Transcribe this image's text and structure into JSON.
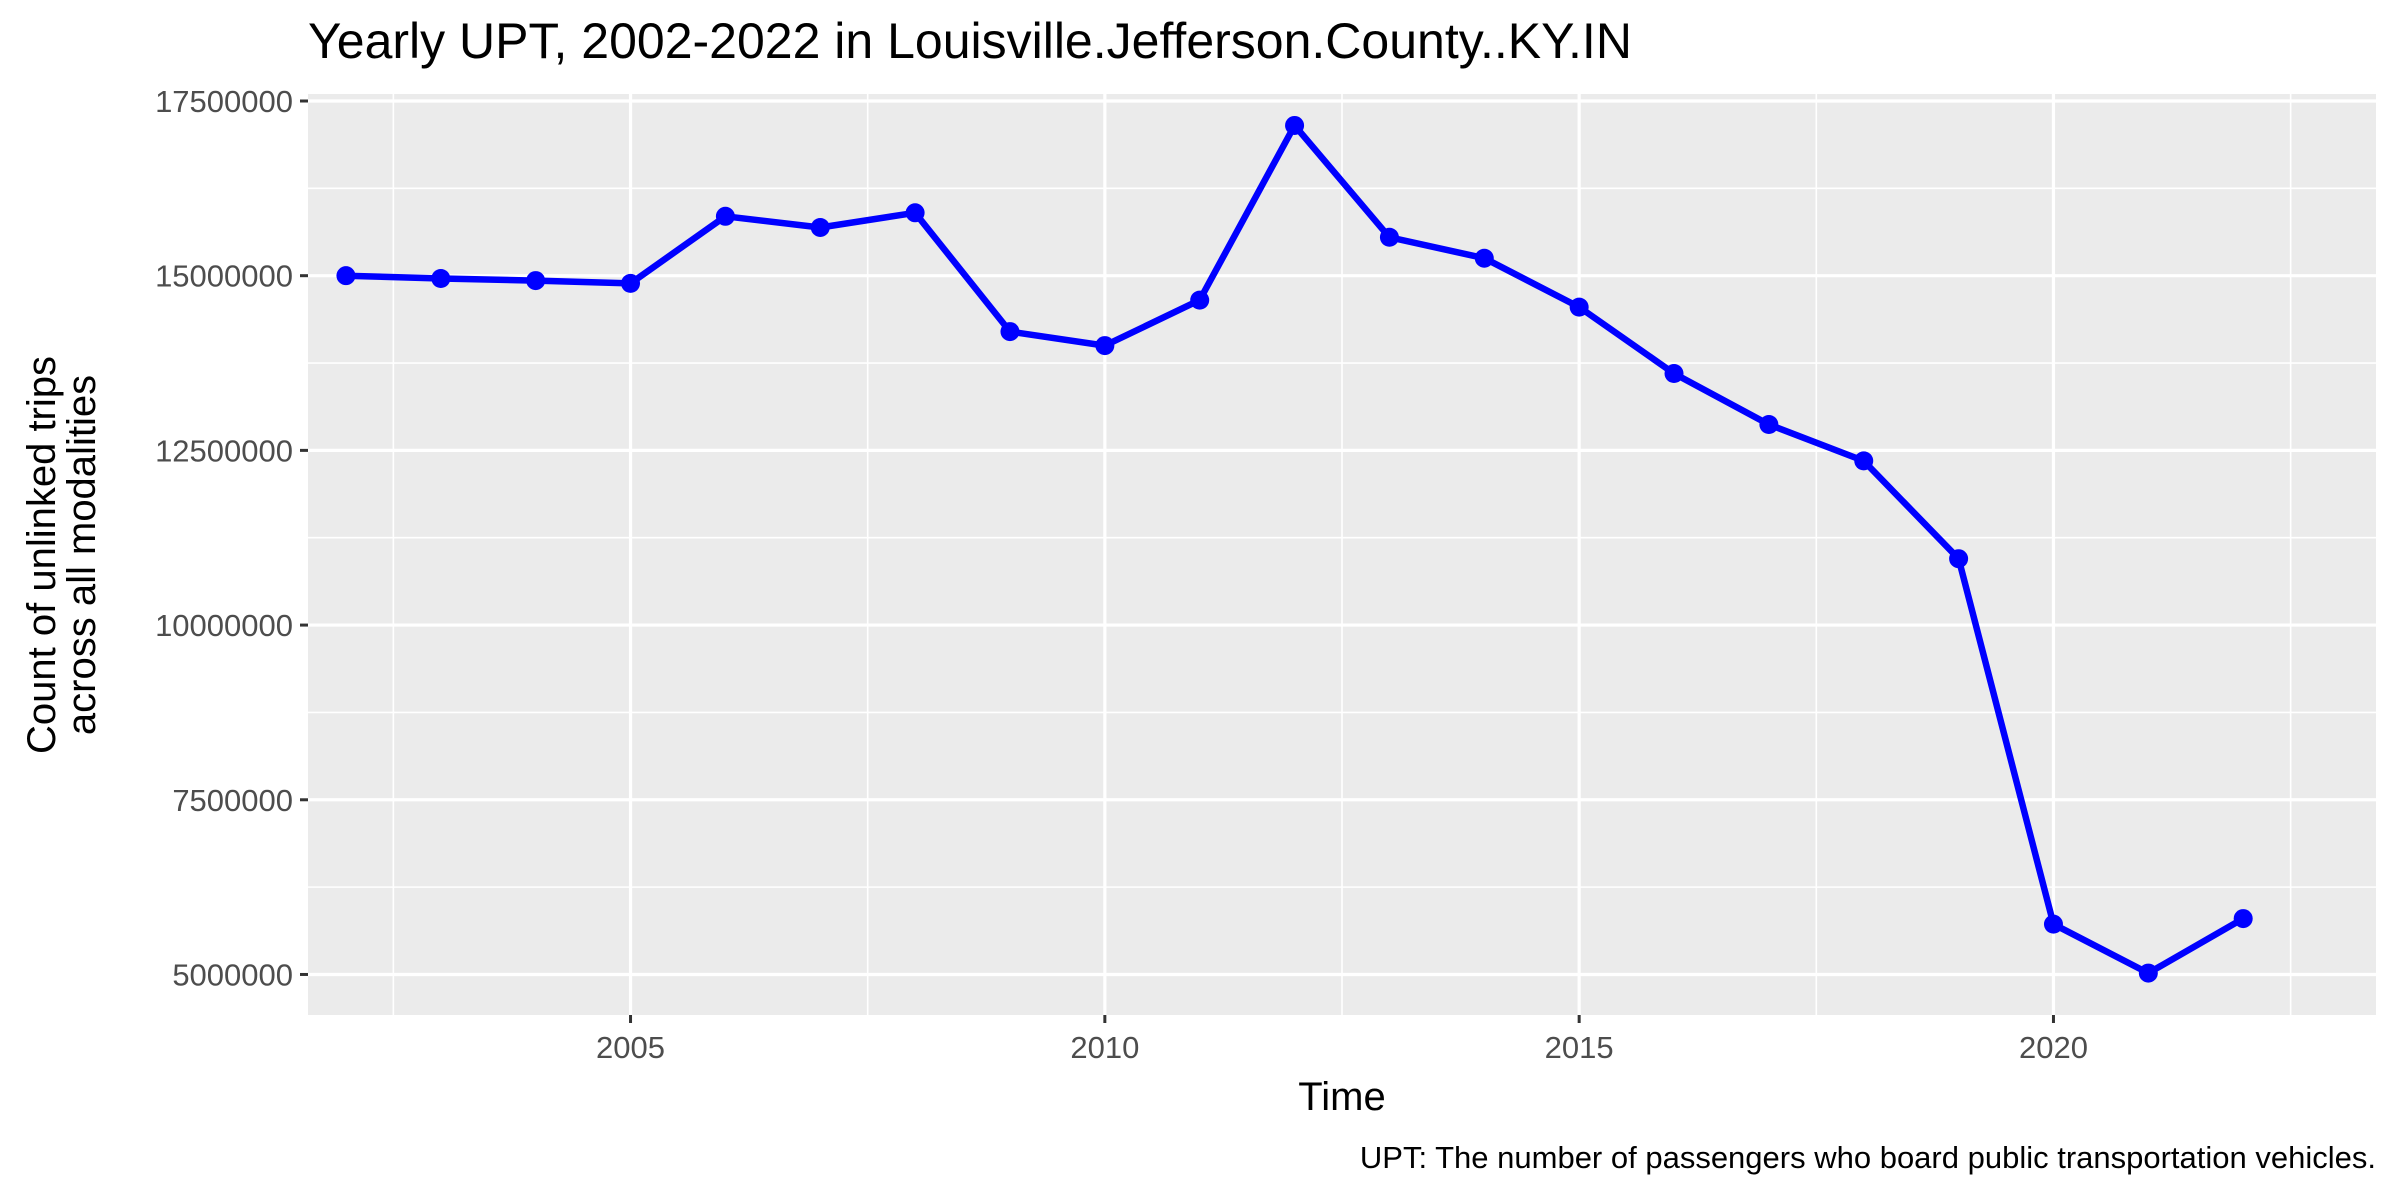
{
  "chart_data": {
    "type": "line",
    "title": "Yearly UPT, 2002-2022 in Louisville.Jefferson.County..KY.IN",
    "xlabel": "Time",
    "ylabel_lines": [
      "Count of unlinked trips",
      "across all modalities"
    ],
    "caption": "UPT: The number of passengers who board public transportation vehicles.",
    "xlim": [
      2001.6,
      2023.4
    ],
    "ylim": [
      4420000,
      17600000
    ],
    "x_ticks": [
      2005,
      2010,
      2015,
      2020
    ],
    "x_tick_labels": [
      "2005",
      "2010",
      "2015",
      "2020"
    ],
    "y_ticks": [
      5000000,
      7500000,
      10000000,
      12500000,
      15000000,
      17500000
    ],
    "y_tick_labels": [
      "5000000",
      "7500000",
      "10000000",
      "12500000",
      "15000000",
      "17500000"
    ],
    "grid": true,
    "legend": "none",
    "panel_color": "#ebebeb",
    "grid_color": "#ffffff",
    "series": [
      {
        "color": "#0000ff",
        "x": [
          2002,
          2003,
          2004,
          2005,
          2006,
          2007,
          2008,
          2009,
          2010,
          2011,
          2012,
          2013,
          2014,
          2015,
          2016,
          2017,
          2018,
          2019,
          2020,
          2021,
          2022
        ],
        "values": [
          15000000,
          14960000,
          14930000,
          14890000,
          15850000,
          15690000,
          15900000,
          14200000,
          14000000,
          14650000,
          17150000,
          15550000,
          15250000,
          14550000,
          13600000,
          12870000,
          12350000,
          10950000,
          5720000,
          5020000,
          5800000
        ]
      }
    ]
  }
}
